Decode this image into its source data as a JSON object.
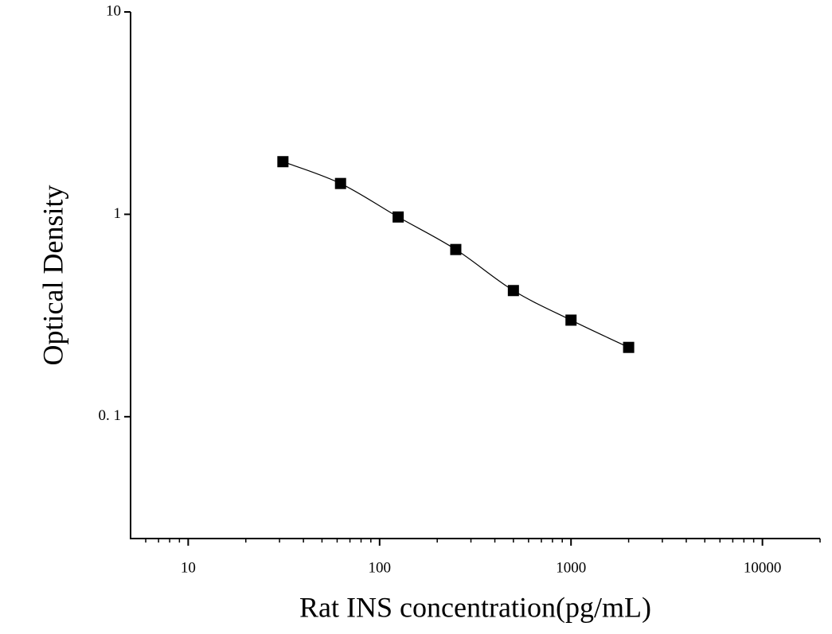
{
  "chart_data": {
    "type": "scatter",
    "x_label": "Rat INS concentration(pg/mL)",
    "y_label": "Optical Density",
    "x": [
      31.25,
      62.5,
      125,
      250,
      500,
      1000,
      2000
    ],
    "values": [
      1.82,
      1.42,
      0.97,
      0.67,
      0.42,
      0.3,
      0.22
    ],
    "color": "#000000",
    "fit_curve": true,
    "xlog": true,
    "ylog": true,
    "xlim": [
      5,
      20000
    ],
    "ylim": [
      0.025,
      10
    ],
    "xticks": [
      10,
      100,
      1000,
      10000
    ],
    "xminorticks": [
      6,
      7,
      8,
      9,
      20,
      30,
      40,
      50,
      60,
      70,
      80,
      90,
      200,
      300,
      400,
      500,
      600,
      700,
      800,
      900,
      2000,
      3000,
      4000,
      5000,
      6000,
      7000,
      8000,
      9000,
      20000
    ],
    "yticks": [
      {
        "value": 0.1,
        "label": "0. 1"
      },
      1,
      10
    ]
  }
}
